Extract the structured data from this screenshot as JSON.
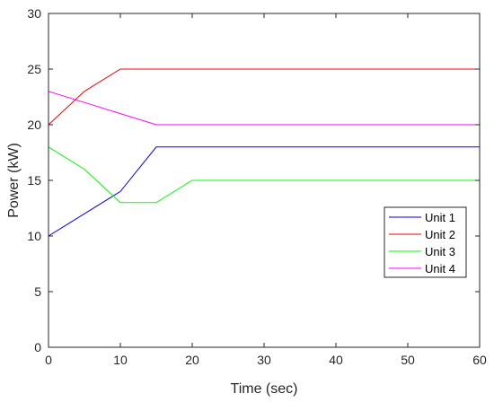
{
  "chart_data": {
    "type": "line",
    "xlabel": "Time (sec)",
    "ylabel": "Power (kW)",
    "xlim": [
      0,
      60
    ],
    "ylim": [
      0,
      30
    ],
    "xticks": [
      0,
      10,
      20,
      30,
      40,
      50,
      60
    ],
    "yticks": [
      0,
      5,
      10,
      15,
      20,
      25,
      30
    ],
    "grid": false,
    "legend_position": "right",
    "series": [
      {
        "name": "Unit 1",
        "color": "#0000FF",
        "x": [
          0,
          5,
          10,
          15,
          60
        ],
        "y": [
          10,
          12,
          14,
          18,
          18
        ]
      },
      {
        "name": "Unit 2",
        "color": "#FF0000",
        "x": [
          0,
          5,
          10,
          60
        ],
        "y": [
          20,
          23,
          25,
          25
        ]
      },
      {
        "name": "Unit 3",
        "color": "#00FF00",
        "x": [
          0,
          5,
          10,
          15,
          20,
          60
        ],
        "y": [
          18,
          16,
          13,
          13,
          15,
          15
        ]
      },
      {
        "name": "Unit 4",
        "color": "#FF00FF",
        "x": [
          0,
          15,
          60
        ],
        "y": [
          23,
          20,
          20
        ]
      }
    ]
  }
}
